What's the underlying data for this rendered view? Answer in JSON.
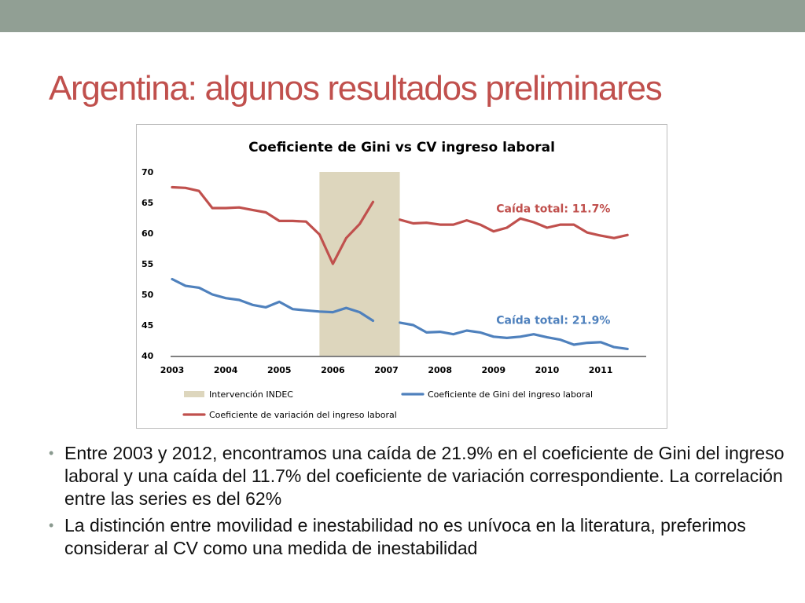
{
  "slide": {
    "title": "Argentina: algunos resultados preliminares",
    "bullets": [
      {
        "text": "Entre 2003 y 2012, encontramos una caída de 21.9% en el coeficiente de Gini del ingreso laboral y una caída del 11.7% del coeficiente de variación correspondiente. La correlación entre las series es del 62%"
      },
      {
        "text": "La distinción entre movilidad e inestabilidad no es unívoca en la literatura, preferimos considerar al CV como una medida de inestabilidad"
      }
    ]
  },
  "chart_data": {
    "type": "line",
    "title": "Coeficiente de Gini vs CV ingreso laboral",
    "xlabel": "",
    "ylabel": "",
    "xlim": [
      2003,
      2011.85
    ],
    "ylim": [
      40,
      70
    ],
    "yticks": [
      40,
      45,
      50,
      55,
      60,
      65,
      70
    ],
    "xticks": [
      2003,
      2004,
      2005,
      2006,
      2007,
      2008,
      2009,
      2010,
      2011
    ],
    "grid": false,
    "shaded_region": {
      "name": "Intervención INDEC",
      "x": [
        2005.75,
        2007.25
      ],
      "color": "#ddd6bd"
    },
    "series": [
      {
        "name": "Coeficiente de variación del ingreso laboral",
        "color": "#c0504d",
        "segments": [
          [
            [
              2003.0,
              67.5
            ],
            [
              2003.25,
              67.4
            ],
            [
              2003.5,
              66.9
            ],
            [
              2003.75,
              64.1
            ],
            [
              2004.0,
              64.1
            ],
            [
              2004.25,
              64.2
            ],
            [
              2004.5,
              63.8
            ],
            [
              2004.75,
              63.4
            ],
            [
              2005.0,
              62.0
            ],
            [
              2005.25,
              62.0
            ],
            [
              2005.5,
              61.9
            ],
            [
              2005.75,
              59.8
            ],
            [
              2006.0,
              55.0
            ],
            [
              2006.25,
              59.2
            ],
            [
              2006.5,
              61.5
            ],
            [
              2006.75,
              65.1
            ]
          ],
          [
            [
              2007.25,
              62.2
            ],
            [
              2007.5,
              61.6
            ],
            [
              2007.75,
              61.7
            ],
            [
              2008.0,
              61.4
            ],
            [
              2008.25,
              61.4
            ],
            [
              2008.5,
              62.1
            ],
            [
              2008.75,
              61.4
            ],
            [
              2009.0,
              60.3
            ],
            [
              2009.25,
              60.9
            ],
            [
              2009.5,
              62.4
            ],
            [
              2009.75,
              61.8
            ],
            [
              2010.0,
              60.9
            ],
            [
              2010.25,
              61.4
            ],
            [
              2010.5,
              61.4
            ],
            [
              2010.75,
              60.1
            ],
            [
              2011.0,
              59.6
            ],
            [
              2011.25,
              59.2
            ],
            [
              2011.5,
              59.7
            ]
          ]
        ]
      },
      {
        "name": "Coeficiente de Gini del ingreso laboral",
        "color": "#4f81bd",
        "segments": [
          [
            [
              2003.0,
              52.5
            ],
            [
              2003.25,
              51.4
            ],
            [
              2003.5,
              51.1
            ],
            [
              2003.75,
              50.0
            ],
            [
              2004.0,
              49.4
            ],
            [
              2004.25,
              49.1
            ],
            [
              2004.5,
              48.3
            ],
            [
              2004.75,
              47.9
            ],
            [
              2005.0,
              48.8
            ],
            [
              2005.25,
              47.6
            ],
            [
              2005.5,
              47.4
            ],
            [
              2005.75,
              47.2
            ],
            [
              2006.0,
              47.1
            ],
            [
              2006.25,
              47.8
            ],
            [
              2006.5,
              47.1
            ],
            [
              2006.75,
              45.7
            ]
          ],
          [
            [
              2007.25,
              45.4
            ],
            [
              2007.5,
              45.0
            ],
            [
              2007.75,
              43.8
            ],
            [
              2008.0,
              43.9
            ],
            [
              2008.25,
              43.5
            ],
            [
              2008.5,
              44.1
            ],
            [
              2008.75,
              43.8
            ],
            [
              2009.0,
              43.1
            ],
            [
              2009.25,
              42.9
            ],
            [
              2009.5,
              43.1
            ],
            [
              2009.75,
              43.5
            ],
            [
              2010.0,
              43.0
            ],
            [
              2010.25,
              42.6
            ],
            [
              2010.5,
              41.8
            ],
            [
              2010.75,
              42.1
            ],
            [
              2011.0,
              42.2
            ],
            [
              2011.25,
              41.4
            ],
            [
              2011.5,
              41.1
            ]
          ]
        ]
      }
    ],
    "annotations": [
      {
        "text": "Caída total: 11.7%",
        "color": "#c0504d",
        "x": 2009.05,
        "y": 63.4
      },
      {
        "text": "Caída total: 21.9%",
        "color": "#4f81bd",
        "x": 2009.05,
        "y": 45.2
      }
    ],
    "legend": {
      "placement": "bottom",
      "items": [
        {
          "label": "Intervención INDEC",
          "kind": "rect",
          "color": "#ddd6bd"
        },
        {
          "label": "Coeficiente de Gini del ingreso laboral",
          "kind": "line",
          "color": "#4f81bd"
        },
        {
          "label": "Coeficiente de variación del ingreso laboral",
          "kind": "line",
          "color": "#c0504d"
        }
      ]
    }
  }
}
